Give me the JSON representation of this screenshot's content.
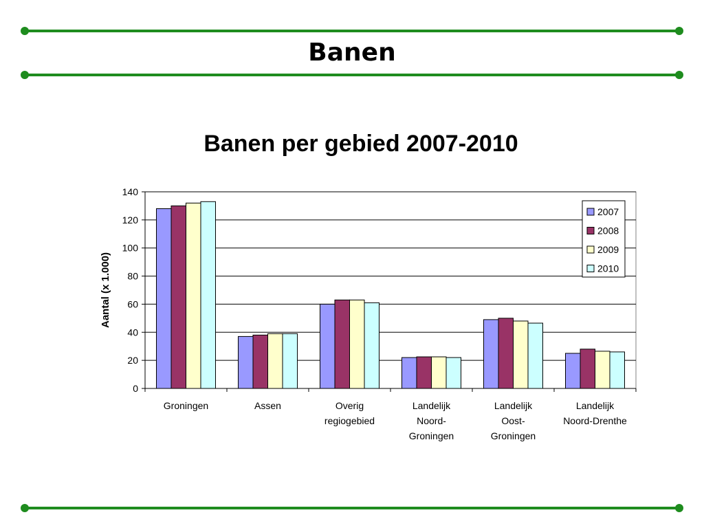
{
  "slide": {
    "title": "Banen",
    "accent_color": "#1e8c1e"
  },
  "chart_data": {
    "type": "bar",
    "title": "Banen per gebied 2007-2010",
    "xlabel": "",
    "ylabel": "Aantal (x 1.000)",
    "ylim": [
      0,
      140
    ],
    "yticks": [
      0,
      20,
      40,
      60,
      80,
      100,
      120,
      140
    ],
    "grid": true,
    "legend_position": "top-right",
    "categories": [
      [
        "Groningen"
      ],
      [
        "Assen"
      ],
      [
        "Overig",
        "regiogebied"
      ],
      [
        "Landelijk",
        "Noord-",
        "Groningen"
      ],
      [
        "Landelijk",
        "Oost-",
        "Groningen"
      ],
      [
        "Landelijk",
        "Noord-Drenthe"
      ]
    ],
    "series": [
      {
        "name": "2007",
        "color": "#9999ff",
        "values": [
          128,
          37,
          60,
          22,
          49,
          25
        ]
      },
      {
        "name": "2008",
        "color": "#993366",
        "values": [
          130,
          38,
          63,
          22.5,
          50,
          28
        ]
      },
      {
        "name": "2009",
        "color": "#ffffcc",
        "values": [
          132,
          39,
          63,
          22.5,
          48,
          26.5
        ]
      },
      {
        "name": "2010",
        "color": "#ccffff",
        "values": [
          133,
          39,
          61,
          22,
          46.5,
          26
        ]
      }
    ]
  }
}
